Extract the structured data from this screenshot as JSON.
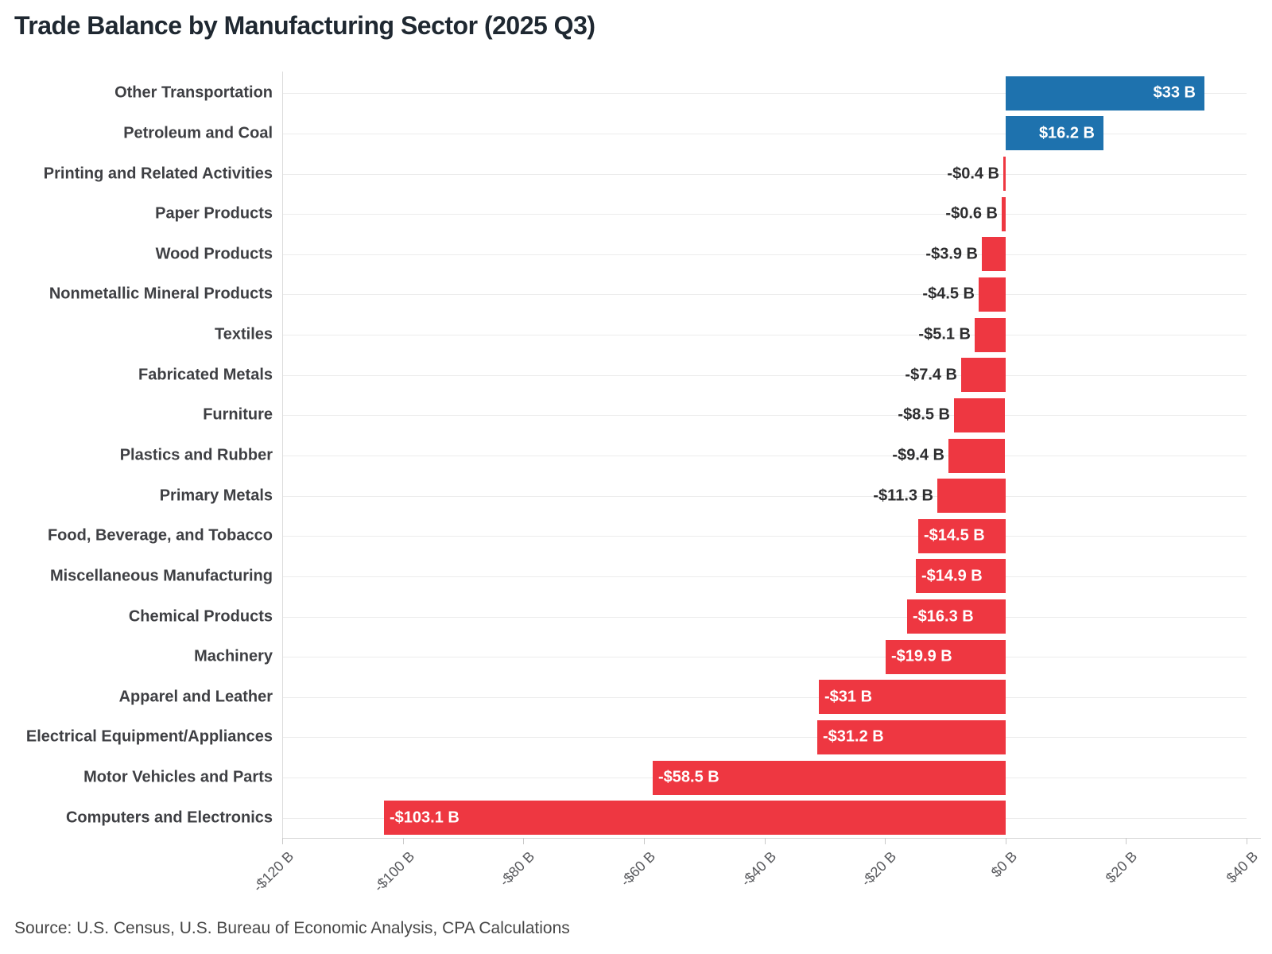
{
  "title": "Trade Balance by Manufacturing Sector (2025 Q3)",
  "source_note": "Source: U.S. Census, U.S. Bureau of Economic Analysis, CPA Calculations",
  "chart_data": {
    "type": "bar",
    "orientation": "horizontal",
    "title": "Trade Balance by Manufacturing Sector (2025 Q3)",
    "unit": "billions of USD",
    "xlabel": "",
    "ylabel": "",
    "xlim": [
      -120,
      40
    ],
    "grid": "row-gridlines-only",
    "legend": "none",
    "colors": {
      "positive_bar": "#1e72ae",
      "negative_bar": "#ee3741",
      "label_inside": "#ffffff",
      "label_outside": "#2d2d2f"
    },
    "x_ticks": [
      {
        "value": -120,
        "label": "-$120 B"
      },
      {
        "value": -100,
        "label": "-$100 B"
      },
      {
        "value": -80,
        "label": "-$80 B"
      },
      {
        "value": -60,
        "label": "-$60 B"
      },
      {
        "value": -40,
        "label": "-$40 B"
      },
      {
        "value": -20,
        "label": "-$20 B"
      },
      {
        "value": 0,
        "label": "$0 B"
      },
      {
        "value": 20,
        "label": "$20 B"
      },
      {
        "value": 40,
        "label": "$40 B"
      }
    ],
    "bars": [
      {
        "sector": "Other Transportation",
        "value": 33,
        "label": "$33 B",
        "label_position": "inside"
      },
      {
        "sector": "Petroleum and Coal",
        "value": 16.2,
        "label": "$16.2 B",
        "label_position": "inside"
      },
      {
        "sector": "Printing and Related Activities",
        "value": -0.4,
        "label": "-$0.4 B",
        "label_position": "outside"
      },
      {
        "sector": "Paper Products",
        "value": -0.6,
        "label": "-$0.6 B",
        "label_position": "outside"
      },
      {
        "sector": "Wood Products",
        "value": -3.9,
        "label": "-$3.9 B",
        "label_position": "outside"
      },
      {
        "sector": "Nonmetallic Mineral Products",
        "value": -4.5,
        "label": "-$4.5 B",
        "label_position": "outside"
      },
      {
        "sector": "Textiles",
        "value": -5.1,
        "label": "-$5.1 B",
        "label_position": "outside"
      },
      {
        "sector": "Fabricated Metals",
        "value": -7.4,
        "label": "-$7.4 B",
        "label_position": "outside"
      },
      {
        "sector": "Furniture",
        "value": -8.5,
        "label": "-$8.5 B",
        "label_position": "outside"
      },
      {
        "sector": "Plastics and Rubber",
        "value": -9.4,
        "label": "-$9.4 B",
        "label_position": "outside"
      },
      {
        "sector": "Primary Metals",
        "value": -11.3,
        "label": "-$11.3 B",
        "label_position": "outside"
      },
      {
        "sector": "Food, Beverage, and Tobacco",
        "value": -14.5,
        "label": "-$14.5 B",
        "label_position": "inside"
      },
      {
        "sector": "Miscellaneous Manufacturing",
        "value": -14.9,
        "label": "-$14.9 B",
        "label_position": "inside"
      },
      {
        "sector": "Chemical Products",
        "value": -16.3,
        "label": "-$16.3 B",
        "label_position": "inside"
      },
      {
        "sector": "Machinery",
        "value": -19.9,
        "label": "-$19.9 B",
        "label_position": "inside"
      },
      {
        "sector": "Apparel and Leather",
        "value": -31,
        "label": "-$31 B",
        "label_position": "inside"
      },
      {
        "sector": "Electrical Equipment/Appliances",
        "value": -31.2,
        "label": "-$31.2 B",
        "label_position": "inside"
      },
      {
        "sector": "Motor Vehicles and Parts",
        "value": -58.5,
        "label": "-$58.5 B",
        "label_position": "inside"
      },
      {
        "sector": "Computers and Electronics",
        "value": -103.1,
        "label": "-$103.1 B",
        "label_position": "inside"
      }
    ]
  }
}
